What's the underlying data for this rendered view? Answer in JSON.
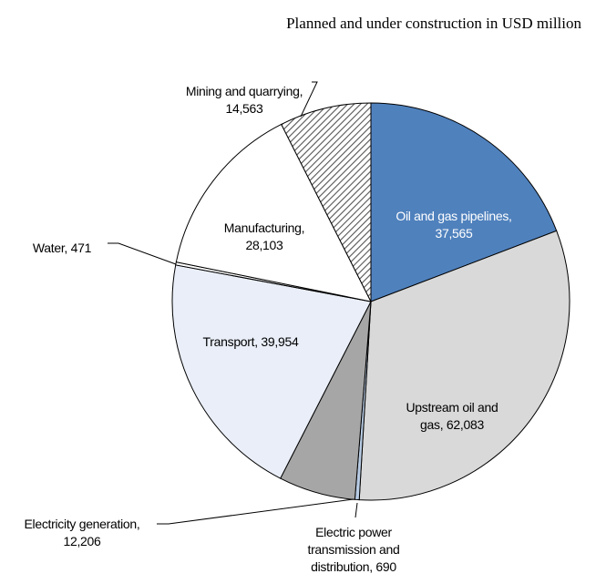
{
  "chart_data": {
    "type": "pie",
    "title": "Planned and under construction in USD million",
    "categories": [
      "Oil and gas pipelines,",
      "Upstream oil and gas,",
      "Electric power transmission and distribution,",
      "Electricity generation,",
      "Transport,",
      "Water,",
      "Manufacturing,",
      "Mining and quarrying,"
    ],
    "values": [
      37565,
      62083,
      690,
      12206,
      39954,
      471,
      28103,
      14563
    ],
    "value_labels": [
      "37,565",
      "62,083",
      "690",
      "12,206",
      "39,954",
      "471",
      "28,103",
      "14,563"
    ],
    "colors": [
      "#4f81bd",
      "#d9d9d9",
      "#b8cce4",
      "#a6a6a6",
      "#e9eef8",
      "#ffffff",
      "#ffffff",
      "hatch"
    ]
  }
}
